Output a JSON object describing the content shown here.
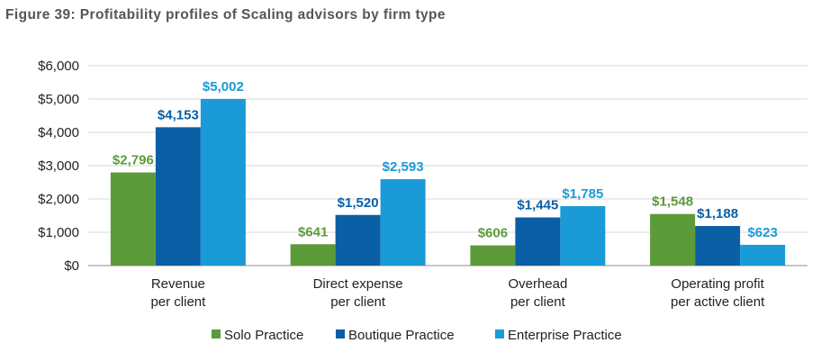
{
  "chart_data": {
    "type": "bar",
    "title": "Figure 39: Profitability profiles of Scaling advisors by firm type",
    "categories": [
      [
        "Revenue",
        "per client"
      ],
      [
        "Direct expense",
        "per client"
      ],
      [
        "Overhead",
        "per client"
      ],
      [
        "Operating profit",
        "per active client"
      ]
    ],
    "series": [
      {
        "name": "Solo Practice",
        "color": "#5c9a3a",
        "values": [
          2796,
          641,
          606,
          1548
        ],
        "labels": [
          "$2,796",
          "$641",
          "$606",
          "$1,548"
        ]
      },
      {
        "name": "Boutique Practice",
        "color": "#0a5fa5",
        "values": [
          4153,
          1520,
          1445,
          1188
        ],
        "labels": [
          "$4,153",
          "$1,520",
          "$1,445",
          "$1,188"
        ]
      },
      {
        "name": "Enterprise Practice",
        "color": "#1a9ad6",
        "values": [
          5002,
          2593,
          1785,
          623
        ],
        "labels": [
          "$5,002",
          "$2,593",
          "$1,785",
          "$623"
        ]
      }
    ],
    "ylim": [
      0,
      6000
    ],
    "yticks": [
      0,
      1000,
      2000,
      3000,
      4000,
      5000,
      6000
    ],
    "ytick_labels": [
      "$0",
      "$1,000",
      "$2,000",
      "$3,000",
      "$4,000",
      "$5,000",
      "$6,000"
    ],
    "grid": true,
    "legend_position": "bottom"
  }
}
